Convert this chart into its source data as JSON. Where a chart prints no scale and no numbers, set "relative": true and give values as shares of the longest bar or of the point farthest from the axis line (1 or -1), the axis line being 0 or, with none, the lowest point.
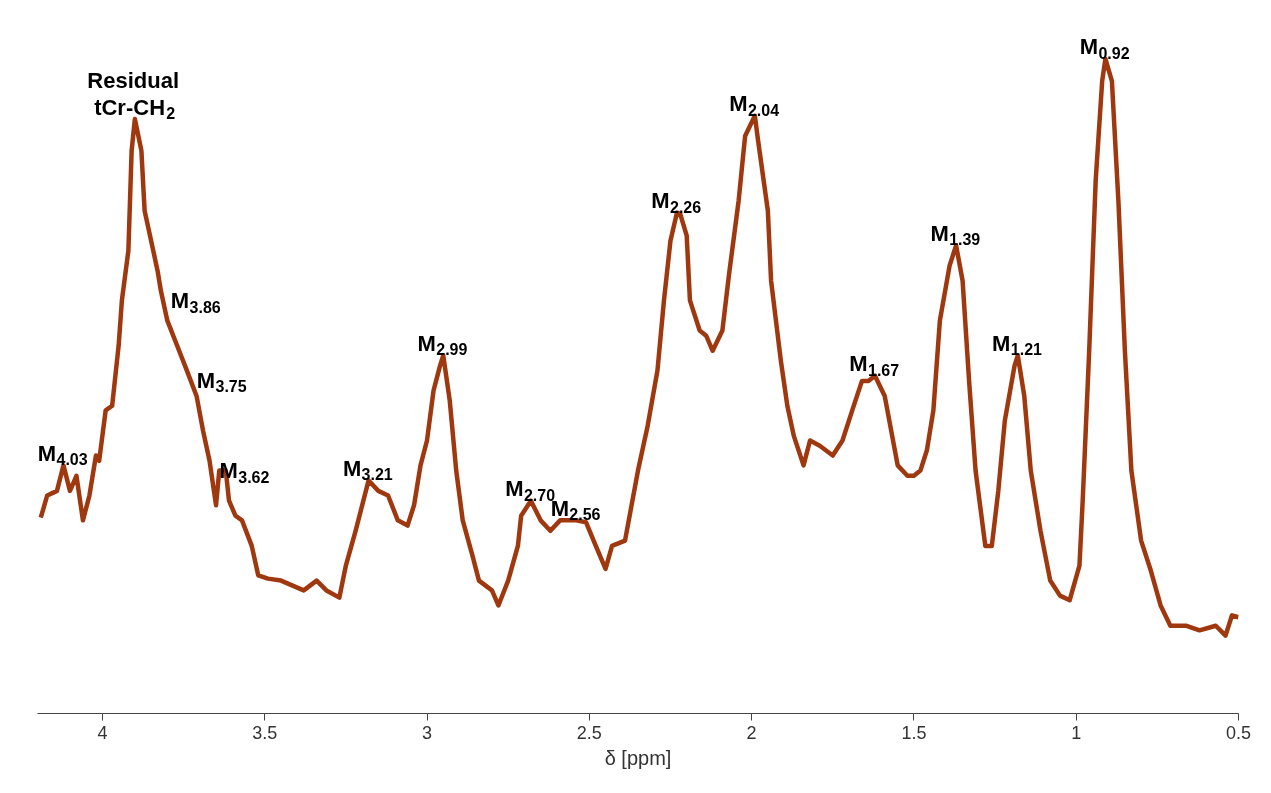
{
  "chart_data": {
    "type": "line",
    "xlabel": "δ [ppm]",
    "relative": true,
    "color": "#a0380f",
    "line_style": "solid",
    "xlim": [
      4.2,
      0.5
    ],
    "xticks": [
      4,
      3.5,
      3,
      2.5,
      2,
      1.5,
      1,
      0.5
    ],
    "x": [
      4.19,
      4.17,
      4.14,
      4.12,
      4.1,
      4.08,
      4.06,
      4.04,
      4.02,
      4.01,
      3.99,
      3.97,
      3.95,
      3.94,
      3.92,
      3.91,
      3.9,
      3.88,
      3.87,
      3.85,
      3.83,
      3.82,
      3.8,
      3.77,
      3.74,
      3.71,
      3.69,
      3.67,
      3.65,
      3.64,
      3.62,
      3.61,
      3.59,
      3.57,
      3.54,
      3.52,
      3.49,
      3.45,
      3.38,
      3.34,
      3.31,
      3.27,
      3.25,
      3.22,
      3.18,
      3.15,
      3.12,
      3.09,
      3.06,
      3.04,
      3.02,
      3.0,
      2.98,
      2.96,
      2.95,
      2.93,
      2.91,
      2.89,
      2.86,
      2.84,
      2.8,
      2.78,
      2.75,
      2.72,
      2.71,
      2.68,
      2.65,
      2.62,
      2.59,
      2.54,
      2.51,
      2.48,
      2.45,
      2.43,
      2.39,
      2.35,
      2.32,
      2.29,
      2.27,
      2.25,
      2.23,
      2.22,
      2.2,
      2.19,
      2.16,
      2.14,
      2.12,
      2.09,
      2.07,
      2.04,
      2.02,
      1.99,
      1.98,
      1.95,
      1.94,
      1.91,
      1.89,
      1.87,
      1.84,
      1.82,
      1.79,
      1.75,
      1.72,
      1.69,
      1.66,
      1.64,
      1.62,
      1.59,
      1.57,
      1.55,
      1.52,
      1.5,
      1.48,
      1.46,
      1.44,
      1.42,
      1.39,
      1.37,
      1.35,
      1.33,
      1.31,
      1.28,
      1.26,
      1.24,
      1.22,
      1.19,
      1.18,
      1.16,
      1.14,
      1.11,
      1.08,
      1.05,
      1.02,
      0.99,
      0.98,
      0.96,
      0.94,
      0.92,
      0.91,
      0.89,
      0.87,
      0.85,
      0.83,
      0.8,
      0.77,
      0.74,
      0.71,
      0.66,
      0.62,
      0.57,
      0.54,
      0.52,
      0.5
    ],
    "values": [
      0.299,
      0.333,
      0.34,
      0.379,
      0.34,
      0.363,
      0.295,
      0.333,
      0.394,
      0.386,
      0.463,
      0.47,
      0.562,
      0.631,
      0.707,
      0.86,
      0.908,
      0.86,
      0.768,
      0.722,
      0.676,
      0.646,
      0.6,
      0.562,
      0.524,
      0.485,
      0.432,
      0.386,
      0.318,
      0.371,
      0.371,
      0.325,
      0.302,
      0.295,
      0.256,
      0.211,
      0.206,
      0.203,
      0.188,
      0.203,
      0.188,
      0.177,
      0.226,
      0.279,
      0.356,
      0.34,
      0.333,
      0.295,
      0.287,
      0.318,
      0.379,
      0.417,
      0.493,
      0.531,
      0.547,
      0.478,
      0.371,
      0.295,
      0.241,
      0.203,
      0.188,
      0.165,
      0.203,
      0.256,
      0.302,
      0.325,
      0.295,
      0.279,
      0.295,
      0.295,
      0.292,
      0.256,
      0.221,
      0.256,
      0.264,
      0.371,
      0.44,
      0.524,
      0.631,
      0.722,
      0.765,
      0.763,
      0.73,
      0.631,
      0.585,
      0.577,
      0.554,
      0.585,
      0.669,
      0.783,
      0.882,
      0.913,
      0.875,
      0.768,
      0.661,
      0.539,
      0.47,
      0.424,
      0.379,
      0.417,
      0.409,
      0.394,
      0.417,
      0.463,
      0.508,
      0.508,
      0.516,
      0.485,
      0.432,
      0.379,
      0.363,
      0.363,
      0.371,
      0.402,
      0.463,
      0.6,
      0.684,
      0.715,
      0.661,
      0.508,
      0.371,
      0.256,
      0.256,
      0.34,
      0.447,
      0.531,
      0.547,
      0.485,
      0.371,
      0.279,
      0.203,
      0.18,
      0.173,
      0.226,
      0.325,
      0.554,
      0.814,
      0.966,
      1.0,
      0.966,
      0.783,
      0.554,
      0.371,
      0.264,
      0.218,
      0.165,
      0.134,
      0.134,
      0.127,
      0.134,
      0.119,
      0.15,
      0.147
    ],
    "annotations": [
      {
        "text": "M$_{4.03}$",
        "x": 4.12,
        "y": 0.379
      },
      {
        "text": "Residual\ntCr-CH$_{2}$",
        "x": 3.9,
        "y": 0.908
      },
      {
        "text": "M$_{3.86}$",
        "x": 3.82,
        "y": 0.646
      },
      {
        "text": "M$_{3.75}$",
        "x": 3.74,
        "y": 0.524
      },
      {
        "text": "M$_{3.62}$",
        "x": 3.67,
        "y": 0.386
      },
      {
        "text": "M$_{3.21}$",
        "x": 3.18,
        "y": 0.356
      },
      {
        "text": "M$_{2.99}$",
        "x": 2.95,
        "y": 0.547
      },
      {
        "text": "M$_{2.70}$",
        "x": 2.68,
        "y": 0.325
      },
      {
        "text": "M$_{2.56}$",
        "x": 2.54,
        "y": 0.295
      },
      {
        "text": "M$_{2.26}$",
        "x": 2.23,
        "y": 0.765
      },
      {
        "text": "M$_{2.04}$",
        "x": 1.99,
        "y": 0.913
      },
      {
        "text": "M$_{1.67}$",
        "x": 1.62,
        "y": 0.516
      },
      {
        "text": "M$_{1.39}$",
        "x": 1.37,
        "y": 0.715
      },
      {
        "text": "M$_{1.21}$",
        "x": 1.18,
        "y": 0.547
      },
      {
        "text": "M$_{0.92}$",
        "x": 0.91,
        "y": 1.0
      }
    ]
  }
}
